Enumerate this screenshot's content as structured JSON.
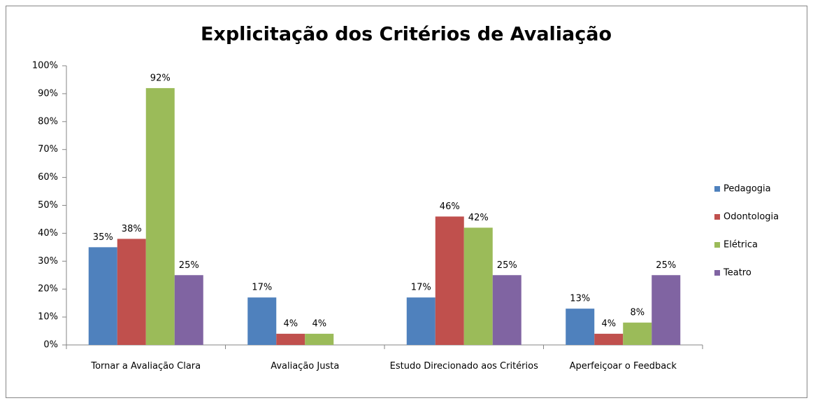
{
  "chart_data": {
    "type": "bar",
    "title": "Explicitação dos Critérios de Avaliação",
    "categories": [
      "Tornar a Avaliação Clara",
      "Avaliação Justa",
      "Estudo Direcionado aos Critérios",
      "Aperfeiçoar o Feedback"
    ],
    "series": [
      {
        "name": "Pedagogia",
        "color": "#4f81bd",
        "values": [
          35,
          17,
          17,
          13
        ],
        "value_labels": [
          "35%",
          "17%",
          "17%",
          "13%"
        ]
      },
      {
        "name": "Odontologia",
        "color": "#c0504d",
        "values": [
          38,
          4,
          46,
          4
        ],
        "value_labels": [
          "38%",
          "4%",
          "46%",
          "4%"
        ]
      },
      {
        "name": "Elétrica",
        "color": "#9bbb59",
        "values": [
          92,
          4,
          42,
          8
        ],
        "value_labels": [
          "92%",
          "4%",
          "42%",
          "8%"
        ]
      },
      {
        "name": "Teatro",
        "color": "#8064a2",
        "values": [
          25,
          null,
          25,
          25
        ],
        "value_labels": [
          "25%",
          null,
          "25%",
          "25%"
        ]
      }
    ],
    "ylim": [
      0,
      100
    ],
    "yticks": [
      {
        "value": 0,
        "label": "0%"
      },
      {
        "value": 10,
        "label": "10%"
      },
      {
        "value": 20,
        "label": "20%"
      },
      {
        "value": 30,
        "label": "30%"
      },
      {
        "value": 40,
        "label": "40%"
      },
      {
        "value": 50,
        "label": "50%"
      },
      {
        "value": 60,
        "label": "60%"
      },
      {
        "value": 70,
        "label": "70%"
      },
      {
        "value": 80,
        "label": "80%"
      },
      {
        "value": 90,
        "label": "90%"
      },
      {
        "value": 100,
        "label": "100%"
      }
    ],
    "legend": "right"
  }
}
